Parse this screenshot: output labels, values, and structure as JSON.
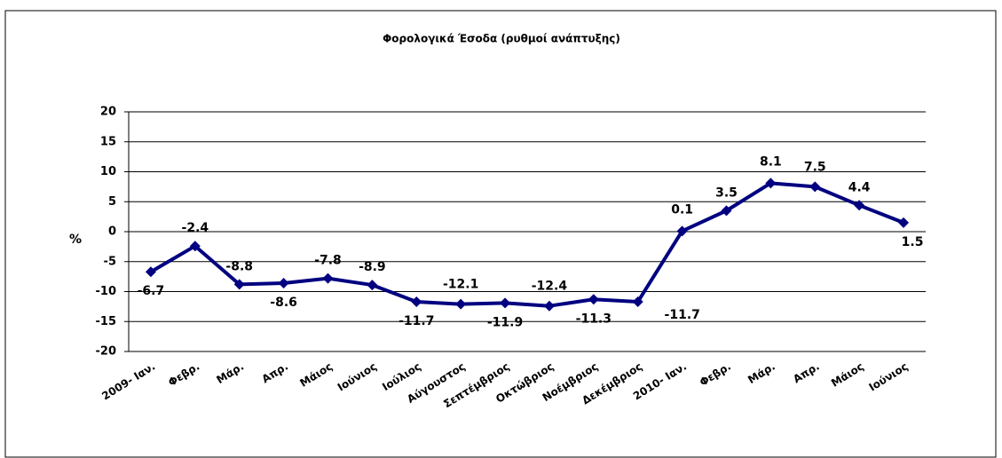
{
  "chart_data": {
    "type": "line",
    "title": "Φορολογικά Έσοδα (ρυθμοί ανάπτυξης)",
    "y_label": "%",
    "categories": [
      "2009- Ιαν.",
      "Φεβρ.",
      "Μάρ.",
      "Απρ.",
      "Μάιος",
      "Ιούνιος",
      "Ιούλιος",
      "Αύγουστος",
      "Σεπτέμβριος",
      "Οκτώβριος",
      "Νοέμβριος",
      "Δεκέμβριος",
      "2010- Ιαν.",
      "Φεβρ.",
      "Μάρ.",
      "Απρ.",
      "Μάιος",
      "Ιούνιος"
    ],
    "series": [
      {
        "name": "Φορολογικά Έσοδα",
        "color": "#000080",
        "values": [
          -6.7,
          -2.4,
          -8.8,
          -8.6,
          -7.8,
          -8.9,
          -11.7,
          -12.1,
          -11.9,
          -12.4,
          -11.3,
          -11.7,
          0.1,
          3.5,
          8.1,
          7.5,
          4.4,
          1.5
        ]
      }
    ],
    "ylim": [
      -20,
      20
    ],
    "yticks": [
      -20,
      -15,
      -10,
      -5,
      0,
      5,
      10,
      15,
      20
    ],
    "grid": true
  }
}
